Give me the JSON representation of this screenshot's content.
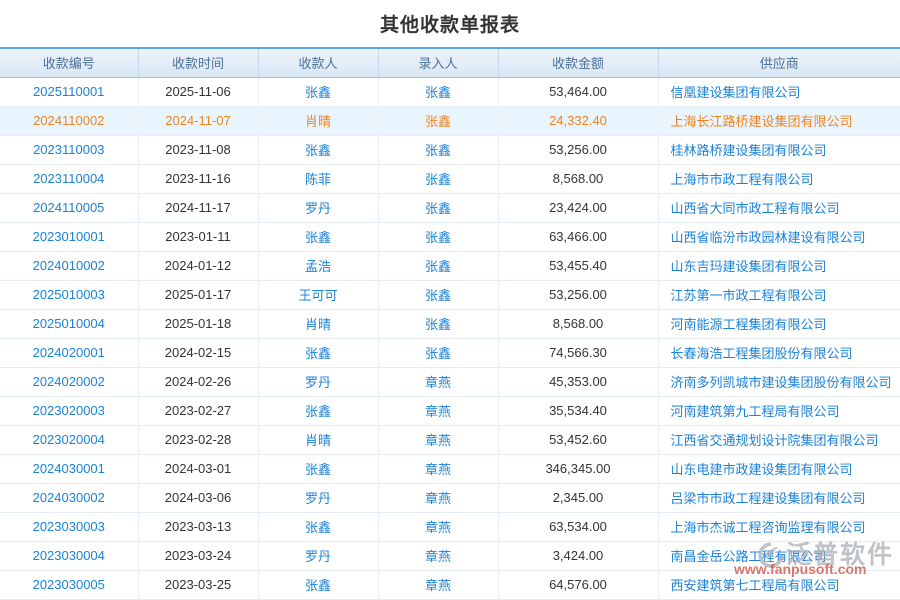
{
  "page": {
    "title": "其他收款单报表"
  },
  "table": {
    "columns": [
      {
        "key": "receipt_no",
        "label": "收款编号",
        "link": true
      },
      {
        "key": "receipt_date",
        "label": "收款时间",
        "link": false
      },
      {
        "key": "payee",
        "label": "收款人",
        "link": true
      },
      {
        "key": "entered_by",
        "label": "录入人",
        "link": true
      },
      {
        "key": "amount",
        "label": "收款金额",
        "link": false
      },
      {
        "key": "supplier",
        "label": "供应商",
        "link": true
      }
    ],
    "rows": [
      {
        "receipt_no": "2025110001",
        "receipt_date": "2025-11-06",
        "payee": "张鑫",
        "entered_by": "张鑫",
        "amount": "53,464.00",
        "supplier": "信凰建设集团有限公司",
        "highlighted": false
      },
      {
        "receipt_no": "2024110002",
        "receipt_date": "2024-11-07",
        "payee": "肖晴",
        "entered_by": "张鑫",
        "amount": "24,332.40",
        "supplier": "上海长江路桥建设集团有限公司",
        "highlighted": true
      },
      {
        "receipt_no": "2023110003",
        "receipt_date": "2023-11-08",
        "payee": "张鑫",
        "entered_by": "张鑫",
        "amount": "53,256.00",
        "supplier": "桂林路桥建设集团有限公司",
        "highlighted": false
      },
      {
        "receipt_no": "2023110004",
        "receipt_date": "2023-11-16",
        "payee": "陈菲",
        "entered_by": "张鑫",
        "amount": "8,568.00",
        "supplier": "上海市市政工程有限公司",
        "highlighted": false
      },
      {
        "receipt_no": "2024110005",
        "receipt_date": "2024-11-17",
        "payee": "罗丹",
        "entered_by": "张鑫",
        "amount": "23,424.00",
        "supplier": "山西省大同市政工程有限公司",
        "highlighted": false
      },
      {
        "receipt_no": "2023010001",
        "receipt_date": "2023-01-11",
        "payee": "张鑫",
        "entered_by": "张鑫",
        "amount": "63,466.00",
        "supplier": "山西省临汾市政园林建设有限公司",
        "highlighted": false
      },
      {
        "receipt_no": "2024010002",
        "receipt_date": "2024-01-12",
        "payee": "孟浩",
        "entered_by": "张鑫",
        "amount": "53,455.40",
        "supplier": "山东吉玛建设集团有限公司",
        "highlighted": false
      },
      {
        "receipt_no": "2025010003",
        "receipt_date": "2025-01-17",
        "payee": "王可可",
        "entered_by": "张鑫",
        "amount": "53,256.00",
        "supplier": "江苏第一市政工程有限公司",
        "highlighted": false
      },
      {
        "receipt_no": "2025010004",
        "receipt_date": "2025-01-18",
        "payee": "肖晴",
        "entered_by": "张鑫",
        "amount": "8,568.00",
        "supplier": "河南能源工程集团有限公司",
        "highlighted": false
      },
      {
        "receipt_no": "2024020001",
        "receipt_date": "2024-02-15",
        "payee": "张鑫",
        "entered_by": "张鑫",
        "amount": "74,566.30",
        "supplier": "长春海浩工程集团股份有限公司",
        "highlighted": false
      },
      {
        "receipt_no": "2024020002",
        "receipt_date": "2024-02-26",
        "payee": "罗丹",
        "entered_by": "章燕",
        "amount": "45,353.00",
        "supplier": "济南多列凯城市建设集团股份有限公司",
        "highlighted": false
      },
      {
        "receipt_no": "2023020003",
        "receipt_date": "2023-02-27",
        "payee": "张鑫",
        "entered_by": "章燕",
        "amount": "35,534.40",
        "supplier": "河南建筑第九工程局有限公司",
        "highlighted": false
      },
      {
        "receipt_no": "2023020004",
        "receipt_date": "2023-02-28",
        "payee": "肖晴",
        "entered_by": "章燕",
        "amount": "53,452.60",
        "supplier": "江西省交通规划设计院集团有限公司",
        "highlighted": false
      },
      {
        "receipt_no": "2024030001",
        "receipt_date": "2024-03-01",
        "payee": "张鑫",
        "entered_by": "章燕",
        "amount": "346,345.00",
        "supplier": "山东电建市政建设集团有限公司",
        "highlighted": false
      },
      {
        "receipt_no": "2024030002",
        "receipt_date": "2024-03-06",
        "payee": "罗丹",
        "entered_by": "章燕",
        "amount": "2,345.00",
        "supplier": "吕梁市市政工程建设集团有限公司",
        "highlighted": false
      },
      {
        "receipt_no": "2023030003",
        "receipt_date": "2023-03-13",
        "payee": "张鑫",
        "entered_by": "章燕",
        "amount": "63,534.00",
        "supplier": "上海市杰诚工程咨询监理有限公司",
        "highlighted": false
      },
      {
        "receipt_no": "2023030004",
        "receipt_date": "2023-03-24",
        "payee": "罗丹",
        "entered_by": "章燕",
        "amount": "3,424.00",
        "supplier": "南昌金岳公路工程有限公司",
        "highlighted": false
      },
      {
        "receipt_no": "2023030005",
        "receipt_date": "2023-03-25",
        "payee": "张鑫",
        "entered_by": "章燕",
        "amount": "64,576.00",
        "supplier": "西安建筑第七工程局有限公司",
        "highlighted": false
      }
    ]
  },
  "watermark": {
    "brand": "泛普软件",
    "url": "www.fanpusoft.com"
  },
  "colors": {
    "link_blue": "#1b82d9",
    "highlight_orange": "#f0841e",
    "highlight_row_bg": "#e9f5fe",
    "header_accent_blue": "#58a6de",
    "header_text": "#4d7199",
    "watermark_red": "#cc4433"
  }
}
